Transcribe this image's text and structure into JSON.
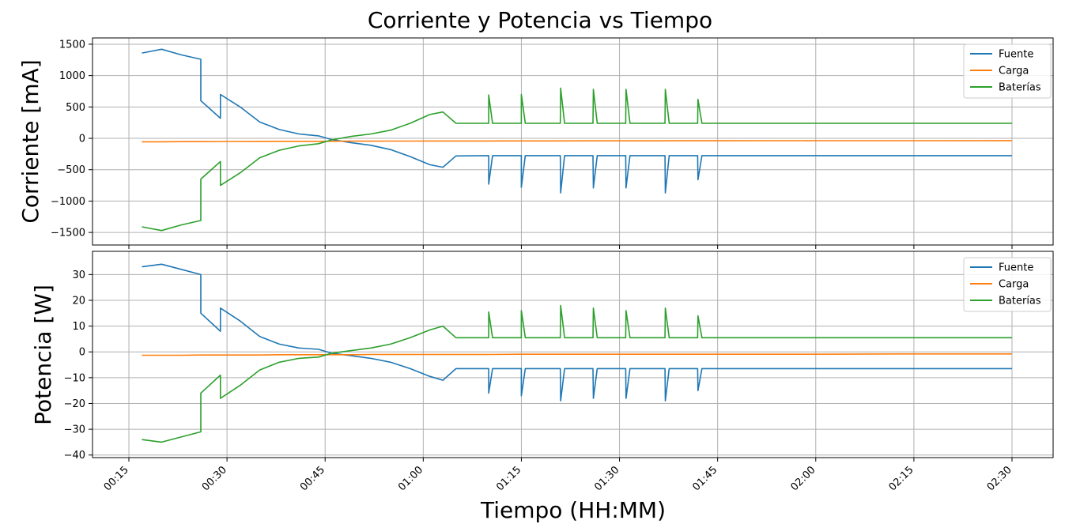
{
  "chart_data": [
    {
      "type": "line",
      "title": "Corriente y Potencia vs Tiempo",
      "ylabel": "Corriente [mA]",
      "xlabel": "",
      "ylim": [
        -1700,
        1600
      ],
      "yticks": [
        -1500,
        -1000,
        -500,
        0,
        500,
        1000,
        1500
      ],
      "ytick_labels": [
        "−1500",
        "−1000",
        "−500",
        "0",
        "500",
        "1000",
        "1500"
      ],
      "grid": true,
      "legend_position": "top-right",
      "series": [
        {
          "name": "Fuente",
          "color": "#1f77b4"
        },
        {
          "name": "Carga",
          "color": "#ff7f0e"
        },
        {
          "name": "Baterías",
          "color": "#2ca02c"
        }
      ],
      "x": [
        "00:17",
        "00:20",
        "00:23",
        "00:26",
        "00:26",
        "00:29",
        "00:29",
        "00:32",
        "00:35",
        "00:38",
        "00:41",
        "00:44",
        "00:46",
        "00:49",
        "00:52",
        "00:55",
        "00:58",
        "01:01",
        "01:03",
        "01:05",
        "01:10",
        "01:15",
        "01:20",
        "01:25",
        "01:30",
        "01:35",
        "01:40",
        "01:45",
        "02:00",
        "02:15",
        "02:30"
      ],
      "values": {
        "Fuente": [
          1360,
          1420,
          1330,
          1260,
          600,
          320,
          700,
          500,
          260,
          140,
          70,
          40,
          -20,
          -70,
          -110,
          -180,
          -290,
          -420,
          -460,
          -280,
          -275,
          -275,
          -275,
          -275,
          -275,
          -275,
          -275,
          -275,
          -275,
          -275,
          -275
        ],
        "Carga": [
          -55,
          -55,
          -53,
          -52,
          -52,
          -50,
          -50,
          -50,
          -49,
          -48,
          -47,
          -47,
          -46,
          -45,
          -45,
          -44,
          -44,
          -43,
          -43,
          -42,
          -42,
          -41,
          -41,
          -40,
          -40,
          -40,
          -39,
          -39,
          -38,
          -37,
          -36
        ],
        "Baterías": [
          -1410,
          -1470,
          -1380,
          -1310,
          -650,
          -370,
          -750,
          -550,
          -310,
          -190,
          -120,
          -85,
          -25,
          30,
          70,
          130,
          240,
          380,
          420,
          240,
          240,
          240,
          240,
          240,
          240,
          240,
          240,
          240,
          240,
          240,
          240
        ]
      }
    },
    {
      "type": "line",
      "title": "",
      "ylabel": "Potencia [W]",
      "xlabel": "Tiempo (HH:MM)",
      "ylim": [
        -41,
        39
      ],
      "yticks": [
        -40,
        -30,
        -20,
        -10,
        0,
        10,
        20,
        30
      ],
      "ytick_labels": [
        "−40",
        "−30",
        "−20",
        "−10",
        "0",
        "10",
        "20",
        "30"
      ],
      "xticks": [
        "00:15",
        "00:30",
        "00:45",
        "01:00",
        "01:15",
        "01:30",
        "01:45",
        "02:00",
        "02:15",
        "02:30"
      ],
      "grid": true,
      "legend_position": "top-right",
      "series": [
        {
          "name": "Fuente",
          "color": "#1f77b4"
        },
        {
          "name": "Carga",
          "color": "#ff7f0e"
        },
        {
          "name": "Baterías",
          "color": "#2ca02c"
        }
      ],
      "x": [
        "00:17",
        "00:20",
        "00:23",
        "00:26",
        "00:26",
        "00:29",
        "00:29",
        "00:32",
        "00:35",
        "00:38",
        "00:41",
        "00:44",
        "00:46",
        "00:49",
        "00:52",
        "00:55",
        "00:58",
        "01:01",
        "01:03",
        "01:05",
        "01:10",
        "01:15",
        "01:20",
        "01:25",
        "01:30",
        "01:35",
        "01:40",
        "01:45",
        "02:00",
        "02:15",
        "02:30"
      ],
      "values": {
        "Fuente": [
          33,
          34,
          32,
          30,
          15,
          8,
          17,
          12,
          6,
          3,
          1.5,
          1,
          -0.5,
          -1.5,
          -2.5,
          -4,
          -6.5,
          -9.5,
          -11,
          -6.5,
          -6.5,
          -6.5,
          -6.5,
          -6.5,
          -6.5,
          -6.5,
          -6.5,
          -6.5,
          -6.5,
          -6.5,
          -6.5
        ],
        "Carga": [
          -1.3,
          -1.3,
          -1.3,
          -1.2,
          -1.2,
          -1.2,
          -1.2,
          -1.2,
          -1.2,
          -1.1,
          -1.1,
          -1.1,
          -1.1,
          -1.1,
          -1,
          -1,
          -1,
          -1,
          -1,
          -1,
          -1,
          -0.9,
          -0.9,
          -0.9,
          -0.9,
          -0.9,
          -0.9,
          -0.9,
          -0.9,
          -0.8,
          -0.8
        ],
        "Baterías": [
          -34,
          -35,
          -33,
          -31,
          -16,
          -9,
          -18,
          -13,
          -7,
          -4,
          -2.5,
          -2,
          -0.5,
          0.5,
          1.5,
          3,
          5.5,
          8.5,
          10,
          5.5,
          5.5,
          5.5,
          5.5,
          5.5,
          5.5,
          5.5,
          5.5,
          5.5,
          5.5,
          5.5,
          5.5
        ]
      }
    }
  ],
  "spikes_times": [
    "01:10",
    "01:15",
    "01:21",
    "01:26",
    "01:31",
    "01:37",
    "01:42"
  ],
  "spikes": {
    "top": {
      "Fuente": [
        -730,
        -780,
        -870,
        -790,
        -790,
        -870,
        -660
      ],
      "Baterías": [
        690,
        700,
        800,
        780,
        780,
        780,
        620
      ]
    },
    "bottom": {
      "Fuente": [
        -16,
        -17,
        -19,
        -18,
        -18,
        -19,
        -15
      ],
      "Baterías": [
        15.5,
        16,
        18,
        17,
        16,
        17,
        14
      ]
    }
  }
}
